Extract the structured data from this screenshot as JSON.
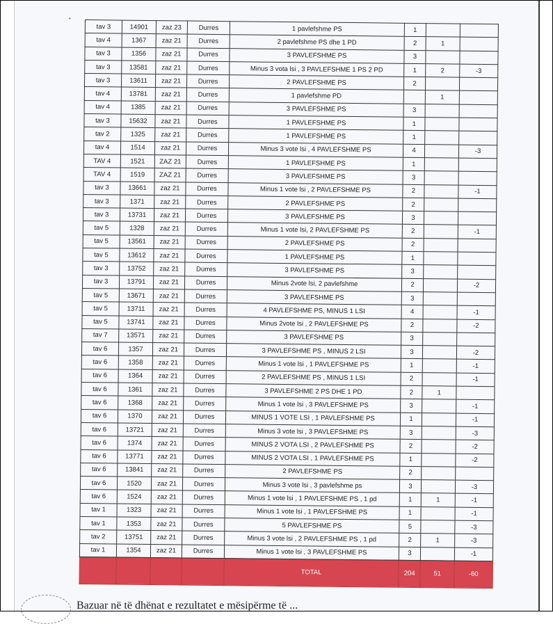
{
  "table": {
    "rows": [
      [
        "tav 3",
        "14901",
        "zaz 23",
        "Durres",
        "1 pavlefshme PS",
        "1",
        "",
        ""
      ],
      [
        "tav 4",
        "1367",
        "zaz 21",
        "Durres",
        "2 pavlefshme PS dhe 1 PD",
        "2",
        "1",
        ""
      ],
      [
        "tav 3",
        "1356",
        "zaz 21",
        "Durres",
        "3 PAVLEFSHME PS",
        "3",
        "",
        ""
      ],
      [
        "tav 3",
        "13581",
        "zaz 21",
        "Durres",
        "Minus 3 vota lsi , 3 PAVLEFSHME 1 PS 2 PD",
        "1",
        "2",
        "-3"
      ],
      [
        "tav 3",
        "13611",
        "zaz 21",
        "Durres",
        "2 PAVLEFSHME PS",
        "2",
        "",
        ""
      ],
      [
        "tav 4",
        "13781",
        "zaz 21",
        "Durres",
        "1 pavlefshme PD",
        "",
        "1",
        ""
      ],
      [
        "tav 4",
        "1385",
        "zaz 21",
        "Durres",
        "3 PAVLEFSHME PS",
        "3",
        "",
        ""
      ],
      [
        "tav 3",
        "15632",
        "zaz 21",
        "Durres",
        "1 PAVLEFSHME PS",
        "1",
        "",
        ""
      ],
      [
        "tav 2",
        "1325",
        "zaz 21",
        "Durres",
        "1 PAVLEFSHME PS",
        "1",
        "",
        ""
      ],
      [
        "tav 4",
        "1514",
        "zaz 21",
        "Durres",
        "Minus 3 vote lsi , 4 PAVLEFSHME PS",
        "4",
        "",
        "-3"
      ],
      [
        "TAV 4",
        "1521",
        "ZAZ 21",
        "Durres",
        "1 PAVLEFSHME PS",
        "1",
        "",
        ""
      ],
      [
        "TAV 4",
        "1519",
        "ZAZ 21",
        "Durres",
        "3 PAVLEFSHME PS",
        "3",
        "",
        ""
      ],
      [
        "tav 3",
        "13661",
        "zaz 21",
        "Durres",
        "Minus 1 vote lsi , 2 PAVLEFSHME PS",
        "2",
        "",
        "-1"
      ],
      [
        "tav 3",
        "1371",
        "zaz 21",
        "Durres",
        "2 PAVLEFSHME PS",
        "2",
        "",
        ""
      ],
      [
        "tav 3",
        "13731",
        "zaz 21",
        "Durres",
        "3 PAVLEFSHME PS",
        "3",
        "",
        ""
      ],
      [
        "tav 5",
        "1328",
        "zaz 21",
        "Durres",
        "Minus 1 vote lsi, 2 PAVLEFSHME PS",
        "2",
        "",
        "-1"
      ],
      [
        "tav 5",
        "13561",
        "zaz 21",
        "Durres",
        "2 PAVLEFSHME PS",
        "2",
        "",
        ""
      ],
      [
        "tav 5",
        "13612",
        "zaz 21",
        "Durres",
        "1 PAVLEFSHME PS",
        "1",
        "",
        ""
      ],
      [
        "tav 3",
        "13752",
        "zaz 21",
        "Durres",
        "3 PAVLEFSHME PS",
        "3",
        "",
        ""
      ],
      [
        "tav 3",
        "13791",
        "zaz 21",
        "Durres",
        "Minus 2vote lsi, 2 pavlefshme",
        "2",
        "",
        "-2"
      ],
      [
        "tav 5",
        "13671",
        "zaz 21",
        "Durres",
        "3 PAVLEFSHME PS",
        "3",
        "",
        ""
      ],
      [
        "tav 5",
        "13711",
        "zaz 21",
        "Durres",
        "4 PAVLEFSHME PS, MINUS 1  LSI",
        "4",
        "",
        "-1"
      ],
      [
        "tav 5",
        "13741",
        "zaz 21",
        "Durres",
        "Minus 2vote lsi , 2 PAVLEFSHME PS",
        "2",
        "",
        "-2"
      ],
      [
        "tav 7",
        "13571",
        "zaz 21",
        "Durres",
        "3 PAVLEFSHME PS",
        "3",
        "",
        ""
      ],
      [
        "tav 6",
        "1357",
        "zaz 21",
        "Durres",
        "3 PAVLEFSHME PS , MINUS 2 LSI",
        "3",
        "",
        "-2"
      ],
      [
        "tav 6",
        "1358",
        "zaz 21",
        "Durres",
        "Minus 1 vote lsi , 1 PAVLEFSHME PS",
        "1",
        "",
        "-1"
      ],
      [
        "tav 6",
        "1364",
        "zaz 21",
        "Durres",
        "2 PAVLEFSHME PS , MINUS 1 LSI",
        "2",
        "",
        "-1"
      ],
      [
        "tav 6",
        "1361",
        "zaz 21",
        "Durres",
        "3 PAVLEFSHME 2 PS DHE 1 PD",
        "2",
        "1",
        ""
      ],
      [
        "tav 6",
        "1368",
        "zaz 21",
        "Durres",
        "Minus 1 vote lsi , 3 PAVLEFSHME PS",
        "3",
        "",
        "-1"
      ],
      [
        "tav 6",
        "1370",
        "zaz 21",
        "Durres",
        "MINUS 1 VOTE LSI , 1 PAVLEFSHME PS",
        "1",
        "",
        "-1"
      ],
      [
        "tav 6",
        "13721",
        "zaz 21",
        "Durres",
        "Minus 3 vote lsi , 3 PAVLEFSHME PS",
        "3",
        "",
        "-3"
      ],
      [
        "tav 6",
        "1374",
        "zaz 21",
        "Durres",
        "MINUS 2 VOTA LSI , 2 PAVLEFSHME PS",
        "2",
        "",
        "-2"
      ],
      [
        "tav 6",
        "13771",
        "zaz 21",
        "Durres",
        "MINUS 2 VOTA LSI , 1 PAVLEFSHME PS",
        "1",
        "",
        "-2"
      ],
      [
        "tav 6",
        "13841",
        "zaz 21",
        "Durres",
        "2 PAVLEFSHME PS",
        "2",
        "",
        ""
      ],
      [
        "tav 6",
        "1520",
        "zaz 21",
        "Durres",
        "Minus 3 vote lsi , 3 pavlefshme ps",
        "3",
        "",
        "-3"
      ],
      [
        "tav 6",
        "1524",
        "zaz 21",
        "Durres",
        "Minus 1 vote lsi , 1 PAVLEFSHME PS , 1 pd",
        "1",
        "1",
        "-1"
      ],
      [
        "tav 1",
        "1323",
        "zaz 21",
        "Durres",
        "Minus 1 vote lsi , 1 PAVLEFSHME PS",
        "1",
        "",
        "-1"
      ],
      [
        "tav 1",
        "1353",
        "zaz 21",
        "Durres",
        "5 PAVLEFSHME PS",
        "5",
        "",
        "-3"
      ],
      [
        "tav 2",
        "13751",
        "zaz 21",
        "Durres",
        "Minus 3 vote lsi , 2 PAVLEFSHME PS , 1 pd",
        "2",
        "1",
        "-3"
      ],
      [
        "tav 1",
        "1354",
        "zaz 21",
        "Durres",
        "Minus 1 vote lsi , 3 PAVLEFSHME PS",
        "3",
        "",
        "-1"
      ]
    ],
    "total": {
      "label": "TOTAL",
      "ps": "204",
      "pd": "51",
      "lsi": "-60"
    }
  },
  "footer_text": "Bazuar në të dhënat e rezultatet e mësipërme të ...",
  "colors": {
    "total_row": "#d64550"
  }
}
